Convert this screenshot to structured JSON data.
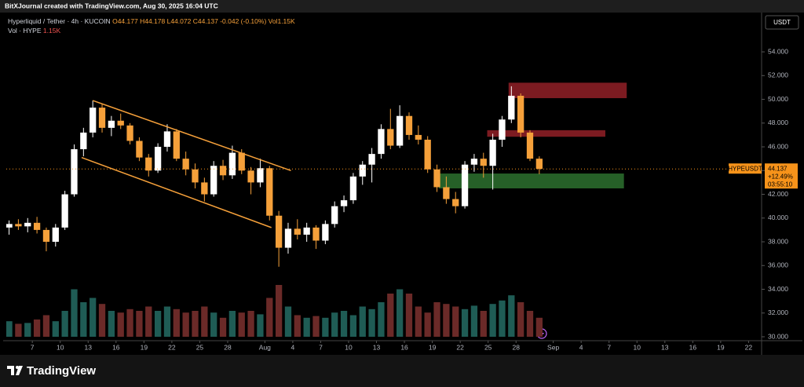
{
  "header": {
    "attribution": "BitXJournal created with TradingView.com, Aug 30, 2025 16:04 UTC"
  },
  "legend": {
    "symbol": "Hyperliquid / Tether · 4h · KUCOIN",
    "open": "O44.177",
    "high": "H44.178",
    "low": "L44.072",
    "close": "C44.137",
    "change": "-0.042 (-0.10%)",
    "volume": "Vol1.15K",
    "vol_title": "Vol · HYPE",
    "vol_value": "1.15K"
  },
  "footer": {
    "brand": "TradingView"
  },
  "chart_data": {
    "type": "candlestick",
    "currency": "USDT",
    "up_color": "#ffffff",
    "down_color": "#f5a03a",
    "x": [
      4.5,
      5.5,
      6.5,
      7.5,
      8.5,
      9.5,
      10.5,
      11.5,
      12.5,
      13.5,
      14.5,
      15.5,
      16.5,
      17.5,
      18.5,
      19.5,
      20.5,
      21.5,
      22.5,
      23.5,
      24.5,
      25.5,
      26.5,
      27.5,
      28.5,
      29.5,
      30.5,
      31.5,
      32.5,
      33.5,
      34.5,
      35.5,
      36.5,
      37.5,
      38.5,
      39.5,
      40.5,
      41.5,
      42.5,
      43.5,
      44.5,
      45.5,
      46.5,
      47.5,
      48.5,
      49.5,
      50.5,
      51.5,
      52.5,
      53.5,
      54.5,
      55.5,
      56.5,
      57.5,
      58.5,
      59.5,
      60.5,
      61.5
    ],
    "open": [
      39.2,
      39.5,
      39.3,
      39.6,
      39.0,
      38.0,
      39.2,
      42.0,
      45.8,
      47.2,
      49.3,
      47.6,
      48.2,
      47.8,
      46.5,
      45.1,
      44.0,
      46.0,
      47.3,
      45.0,
      44.1,
      43.0,
      42.0,
      44.4,
      43.6,
      45.5,
      44.0,
      43.0,
      44.2,
      40.2,
      37.5,
      39.1,
      38.6,
      39.2,
      38.1,
      39.5,
      41.0,
      41.5,
      43.5,
      44.5,
      45.4,
      47.5,
      46.1,
      48.6,
      47.0,
      46.6,
      44.1,
      42.6,
      41.6,
      41.0,
      44.5,
      45.0,
      44.4,
      46.6,
      48.3,
      50.3,
      47.2,
      45.0
    ],
    "high": [
      39.8,
      39.9,
      40.0,
      40.1,
      39.2,
      39.5,
      42.3,
      46.2,
      47.6,
      49.9,
      49.6,
      48.6,
      48.8,
      48.0,
      46.8,
      45.4,
      46.3,
      47.9,
      47.5,
      45.6,
      44.6,
      43.4,
      44.8,
      44.9,
      46.1,
      45.8,
      44.3,
      45.0,
      44.4,
      40.6,
      39.6,
      39.9,
      39.6,
      39.4,
      39.8,
      41.4,
      41.9,
      43.8,
      44.8,
      45.9,
      47.9,
      49.2,
      49.5,
      48.9,
      47.8,
      46.9,
      44.5,
      43.5,
      42.2,
      44.8,
      45.4,
      45.5,
      47.1,
      48.6,
      51.1,
      50.5,
      47.4,
      45.2
    ],
    "low": [
      38.6,
      39.0,
      38.8,
      38.7,
      37.2,
      37.6,
      39.0,
      41.8,
      45.2,
      46.8,
      47.2,
      46.9,
      47.5,
      46.2,
      44.8,
      43.5,
      43.8,
      45.6,
      44.8,
      43.6,
      42.5,
      41.4,
      41.8,
      43.2,
      43.3,
      43.7,
      42.0,
      42.6,
      39.8,
      35.9,
      37.0,
      38.2,
      38.0,
      37.4,
      37.8,
      39.2,
      40.5,
      41.2,
      42.8,
      43.0,
      45.0,
      45.8,
      45.9,
      46.6,
      46.2,
      43.8,
      42.2,
      41.2,
      40.4,
      40.8,
      43.9,
      43.4,
      42.4,
      46.0,
      48.0,
      46.8,
      44.8,
      43.7
    ],
    "close": [
      39.5,
      39.3,
      39.6,
      39.0,
      38.0,
      39.2,
      42.0,
      45.8,
      47.2,
      49.3,
      47.6,
      48.2,
      47.8,
      46.5,
      45.1,
      44.0,
      46.0,
      47.3,
      45.0,
      44.1,
      43.0,
      42.0,
      44.4,
      43.6,
      45.5,
      44.0,
      43.0,
      44.2,
      40.2,
      37.5,
      39.1,
      38.6,
      39.2,
      38.1,
      39.5,
      41.0,
      41.5,
      43.5,
      44.5,
      45.4,
      47.5,
      46.1,
      48.6,
      47.0,
      46.6,
      44.1,
      42.6,
      41.6,
      41.0,
      44.5,
      45.0,
      44.4,
      46.6,
      48.3,
      50.3,
      47.2,
      45.0,
      44.137
    ],
    "volume": [
      18,
      15,
      16,
      20,
      25,
      18,
      30,
      55,
      40,
      45,
      38,
      30,
      28,
      32,
      30,
      35,
      30,
      35,
      32,
      28,
      30,
      35,
      28,
      22,
      30,
      28,
      30,
      26,
      45,
      60,
      35,
      25,
      22,
      24,
      22,
      28,
      30,
      25,
      35,
      32,
      40,
      50,
      55,
      50,
      35,
      28,
      40,
      38,
      35,
      32,
      36,
      30,
      38,
      42,
      48,
      40,
      30,
      22
    ],
    "volume_lim": [
      0,
      100
    ],
    "xlim": [
      4.2,
      85.4
    ],
    "ylim": [
      29.67,
      57.31
    ],
    "xticks": [
      {
        "value": 7,
        "label": "7"
      },
      {
        "value": 10,
        "label": "10"
      },
      {
        "value": 13,
        "label": "13"
      },
      {
        "value": 16,
        "label": "16"
      },
      {
        "value": 19,
        "label": "19"
      },
      {
        "value": 22,
        "label": "22"
      },
      {
        "value": 25,
        "label": "25"
      },
      {
        "value": 28,
        "label": "28"
      },
      {
        "value": 32,
        "label": "Aug"
      },
      {
        "value": 35,
        "label": "4"
      },
      {
        "value": 38,
        "label": "7"
      },
      {
        "value": 41,
        "label": "10"
      },
      {
        "value": 44,
        "label": "13"
      },
      {
        "value": 47,
        "label": "16"
      },
      {
        "value": 50,
        "label": "19"
      },
      {
        "value": 53,
        "label": "22"
      },
      {
        "value": 56,
        "label": "25"
      },
      {
        "value": 59,
        "label": "28"
      },
      {
        "value": 63,
        "label": "Sep"
      },
      {
        "value": 66,
        "label": "4"
      },
      {
        "value": 69,
        "label": "7"
      },
      {
        "value": 72,
        "label": "10"
      },
      {
        "value": 75,
        "label": "13"
      },
      {
        "value": 78,
        "label": "16"
      },
      {
        "value": 81,
        "label": "19"
      },
      {
        "value": 84,
        "label": "22"
      }
    ],
    "yticks": [
      {
        "value": 54,
        "label": "54.000"
      },
      {
        "value": 52,
        "label": "52.000"
      },
      {
        "value": 50,
        "label": "50.000"
      },
      {
        "value": 48,
        "label": "48.000"
      },
      {
        "value": 46,
        "label": "46.000"
      },
      {
        "value": 44,
        "label": "44.000"
      },
      {
        "value": 42,
        "label": "42.000"
      },
      {
        "value": 40,
        "label": "40.000"
      },
      {
        "value": 38,
        "label": "38.000"
      },
      {
        "value": 36,
        "label": "36.000"
      },
      {
        "value": 34,
        "label": "34.000"
      },
      {
        "value": 32,
        "label": "32.000"
      },
      {
        "value": 30,
        "label": "30.000"
      }
    ],
    "last_price": {
      "value": 44.137,
      "label": "44.137",
      "symbol_tag": "HYPEUSDT",
      "change": "+12.49%",
      "countdown": "03:55:10",
      "color": "#f7931a"
    },
    "zones": [
      {
        "x": [
          58.2,
          70.9
        ],
        "y": [
          50.1,
          51.4
        ],
        "color": "#8a1e25"
      },
      {
        "x": [
          55.9,
          68.6
        ],
        "y": [
          46.85,
          47.4
        ],
        "color": "#8a1e25"
      },
      {
        "x": [
          50.7,
          70.6
        ],
        "y": [
          42.5,
          43.75
        ],
        "color": "#2a6a2c"
      }
    ],
    "channel": {
      "color": "#f5a03a",
      "lines": [
        {
          "x": [
            13.5,
            34.8
          ],
          "y": [
            49.9,
            44.0
          ]
        },
        {
          "x": [
            12.3,
            32.7
          ],
          "y": [
            45.1,
            39.2
          ]
        }
      ]
    }
  }
}
